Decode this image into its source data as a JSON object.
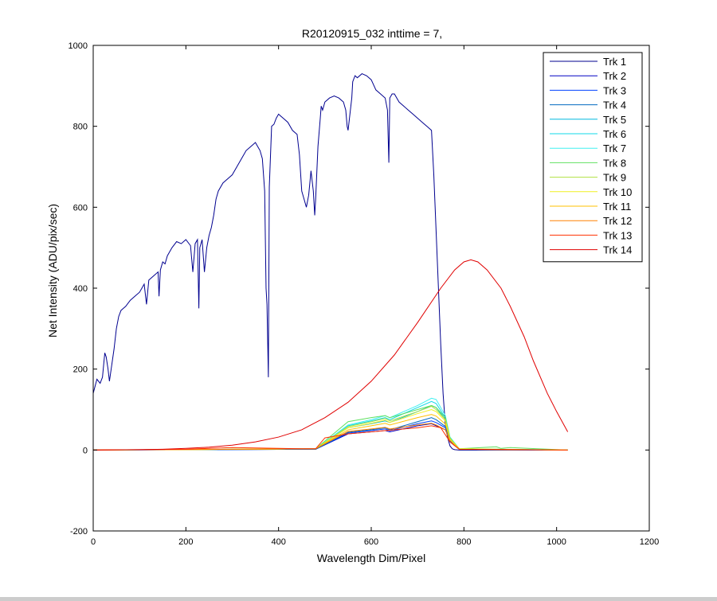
{
  "window": {
    "background": "#cccccc",
    "figure_background": "#ffffff"
  },
  "chart_data": {
    "type": "line",
    "title": "R20120915_032 inttime = 7,",
    "xlabel": "Wavelength Dim/Pixel",
    "ylabel": "Net Intensity (ADU/pix/sec)",
    "xlim": [
      0,
      1200
    ],
    "ylim": [
      -200,
      1000
    ],
    "xticks": [
      0,
      200,
      400,
      600,
      800,
      1000,
      1200
    ],
    "yticks": [
      -200,
      0,
      200,
      400,
      600,
      800,
      1000
    ],
    "grid": false,
    "legend_position": "top-right",
    "series": [
      {
        "name": "Trk 1",
        "color": "#00008f",
        "x": [
          0,
          8,
          15,
          20,
          25,
          28,
          32,
          35,
          40,
          45,
          50,
          55,
          60,
          65,
          70,
          80,
          90,
          100,
          110,
          115,
          120,
          130,
          140,
          142,
          145,
          150,
          155,
          160,
          170,
          180,
          190,
          200,
          210,
          215,
          220,
          225,
          228,
          230,
          235,
          240,
          245,
          250,
          255,
          260,
          265,
          270,
          280,
          290,
          300,
          310,
          320,
          330,
          340,
          350,
          355,
          360,
          365,
          370,
          373,
          375,
          378,
          380,
          385,
          390,
          395,
          400,
          405,
          410,
          420,
          430,
          440,
          445,
          450,
          455,
          460,
          465,
          470,
          475,
          478,
          480,
          485,
          490,
          492,
          495,
          500,
          510,
          520,
          530,
          540,
          545,
          548,
          550,
          555,
          558,
          560,
          565,
          570,
          580,
          590,
          600,
          610,
          620,
          630,
          635,
          638,
          640,
          645,
          650,
          660,
          670,
          680,
          690,
          700,
          710,
          720,
          730,
          735,
          740,
          745,
          750,
          755,
          760,
          765,
          770,
          775,
          780,
          790,
          800,
          810,
          850,
          900,
          950,
          1000,
          1024
        ],
        "y": [
          140,
          175,
          165,
          180,
          240,
          230,
          200,
          170,
          210,
          250,
          300,
          330,
          345,
          350,
          355,
          370,
          380,
          390,
          410,
          360,
          420,
          430,
          440,
          380,
          445,
          465,
          460,
          480,
          500,
          515,
          510,
          520,
          505,
          440,
          510,
          520,
          350,
          500,
          520,
          440,
          500,
          530,
          550,
          580,
          620,
          640,
          660,
          670,
          680,
          700,
          720,
          740,
          750,
          760,
          750,
          740,
          720,
          640,
          400,
          360,
          180,
          650,
          800,
          805,
          820,
          830,
          825,
          820,
          810,
          790,
          780,
          730,
          640,
          620,
          600,
          630,
          690,
          640,
          580,
          620,
          750,
          820,
          850,
          840,
          860,
          870,
          875,
          870,
          860,
          840,
          800,
          790,
          840,
          870,
          910,
          925,
          920,
          930,
          925,
          915,
          890,
          880,
          870,
          840,
          710,
          870,
          880,
          880,
          860,
          850,
          840,
          830,
          820,
          810,
          800,
          790,
          680,
          540,
          400,
          260,
          140,
          60,
          30,
          10,
          3,
          1,
          0,
          0,
          0,
          0,
          0,
          0,
          0,
          0
        ]
      },
      {
        "name": "Trk 2",
        "color": "#0000c4",
        "x": [
          0,
          480,
          550,
          600,
          630,
          640,
          700,
          730,
          740,
          760,
          770,
          790,
          1024
        ],
        "y": [
          0,
          2,
          40,
          45,
          48,
          45,
          60,
          65,
          60,
          50,
          20,
          2,
          0
        ]
      },
      {
        "name": "Trk 3",
        "color": "#0040ff",
        "x": [
          0,
          480,
          550,
          600,
          630,
          640,
          700,
          730,
          740,
          760,
          770,
          790,
          1024
        ],
        "y": [
          0,
          2,
          42,
          48,
          52,
          48,
          65,
          72,
          68,
          55,
          22,
          2,
          0
        ]
      },
      {
        "name": "Trk 4",
        "color": "#0068c0",
        "x": [
          0,
          480,
          550,
          600,
          630,
          640,
          700,
          730,
          740,
          760,
          770,
          790,
          1024
        ],
        "y": [
          0,
          2,
          44,
          50,
          55,
          50,
          70,
          80,
          75,
          58,
          24,
          2,
          0
        ]
      },
      {
        "name": "Trk 5",
        "color": "#00b8e0",
        "x": [
          0,
          480,
          550,
          600,
          630,
          640,
          700,
          730,
          740,
          760,
          770,
          790,
          1024
        ],
        "y": [
          0,
          3,
          55,
          65,
          72,
          68,
          95,
          110,
          105,
          75,
          28,
          3,
          0
        ]
      },
      {
        "name": "Trk 6",
        "color": "#10d8e8",
        "x": [
          0,
          480,
          550,
          600,
          630,
          640,
          700,
          730,
          740,
          760,
          770,
          790,
          1024
        ],
        "y": [
          0,
          3,
          60,
          72,
          80,
          75,
          105,
          120,
          115,
          80,
          30,
          3,
          0
        ]
      },
      {
        "name": "Trk 7",
        "color": "#40f0f0",
        "x": [
          0,
          480,
          550,
          600,
          630,
          640,
          700,
          730,
          740,
          760,
          770,
          790,
          1024
        ],
        "y": [
          0,
          3,
          62,
          75,
          85,
          80,
          110,
          128,
          125,
          85,
          32,
          3,
          0
        ]
      },
      {
        "name": "Trk 8",
        "color": "#60e060",
        "x": [
          0,
          480,
          550,
          600,
          630,
          640,
          700,
          730,
          740,
          760,
          770,
          790,
          870,
          880,
          900,
          1024
        ],
        "y": [
          0,
          3,
          70,
          80,
          85,
          80,
          100,
          110,
          105,
          80,
          30,
          3,
          8,
          4,
          6,
          0
        ]
      },
      {
        "name": "Trk 9",
        "color": "#b0e040",
        "x": [
          0,
          480,
          550,
          600,
          630,
          640,
          700,
          730,
          740,
          760,
          770,
          790,
          1024
        ],
        "y": [
          0,
          3,
          58,
          70,
          78,
          72,
          95,
          108,
          100,
          75,
          28,
          3,
          0
        ]
      },
      {
        "name": "Trk 10",
        "color": "#f0f020",
        "x": [
          0,
          480,
          550,
          600,
          630,
          640,
          700,
          730,
          740,
          760,
          770,
          790,
          1024
        ],
        "y": [
          0,
          3,
          55,
          66,
          74,
          68,
          90,
          100,
          95,
          72,
          27,
          3,
          0
        ]
      },
      {
        "name": "Trk 11",
        "color": "#ffc000",
        "x": [
          0,
          480,
          550,
          600,
          630,
          640,
          700,
          730,
          740,
          760,
          770,
          790,
          1024
        ],
        "y": [
          0,
          3,
          50,
          60,
          66,
          62,
          80,
          88,
          84,
          64,
          25,
          2,
          0
        ]
      },
      {
        "name": "Trk 12",
        "color": "#ff8000",
        "x": [
          0,
          480,
          550,
          600,
          630,
          640,
          700,
          730,
          740,
          760,
          770,
          790,
          1024
        ],
        "y": [
          0,
          3,
          46,
          52,
          56,
          52,
          62,
          66,
          62,
          50,
          20,
          2,
          0
        ]
      },
      {
        "name": "Trk 13",
        "color": "#ff3000",
        "x": [
          0,
          200,
          250,
          300,
          350,
          400,
          450,
          480,
          500,
          550,
          600,
          650,
          700,
          730,
          750,
          770,
          790,
          1024
        ],
        "y": [
          0,
          2,
          4,
          6,
          5,
          4,
          3,
          3,
          30,
          40,
          45,
          50,
          55,
          60,
          55,
          20,
          2,
          0
        ]
      },
      {
        "name": "Trk 14",
        "color": "#e00000",
        "x": [
          0,
          100,
          150,
          200,
          250,
          300,
          350,
          400,
          450,
          500,
          550,
          600,
          650,
          700,
          750,
          780,
          800,
          815,
          830,
          850,
          880,
          900,
          930,
          950,
          980,
          1000,
          1024
        ],
        "y": [
          0,
          1,
          2,
          4,
          7,
          12,
          20,
          32,
          50,
          80,
          118,
          170,
          235,
          315,
          400,
          445,
          465,
          470,
          465,
          445,
          400,
          355,
          280,
          220,
          140,
          95,
          45
        ]
      }
    ]
  }
}
